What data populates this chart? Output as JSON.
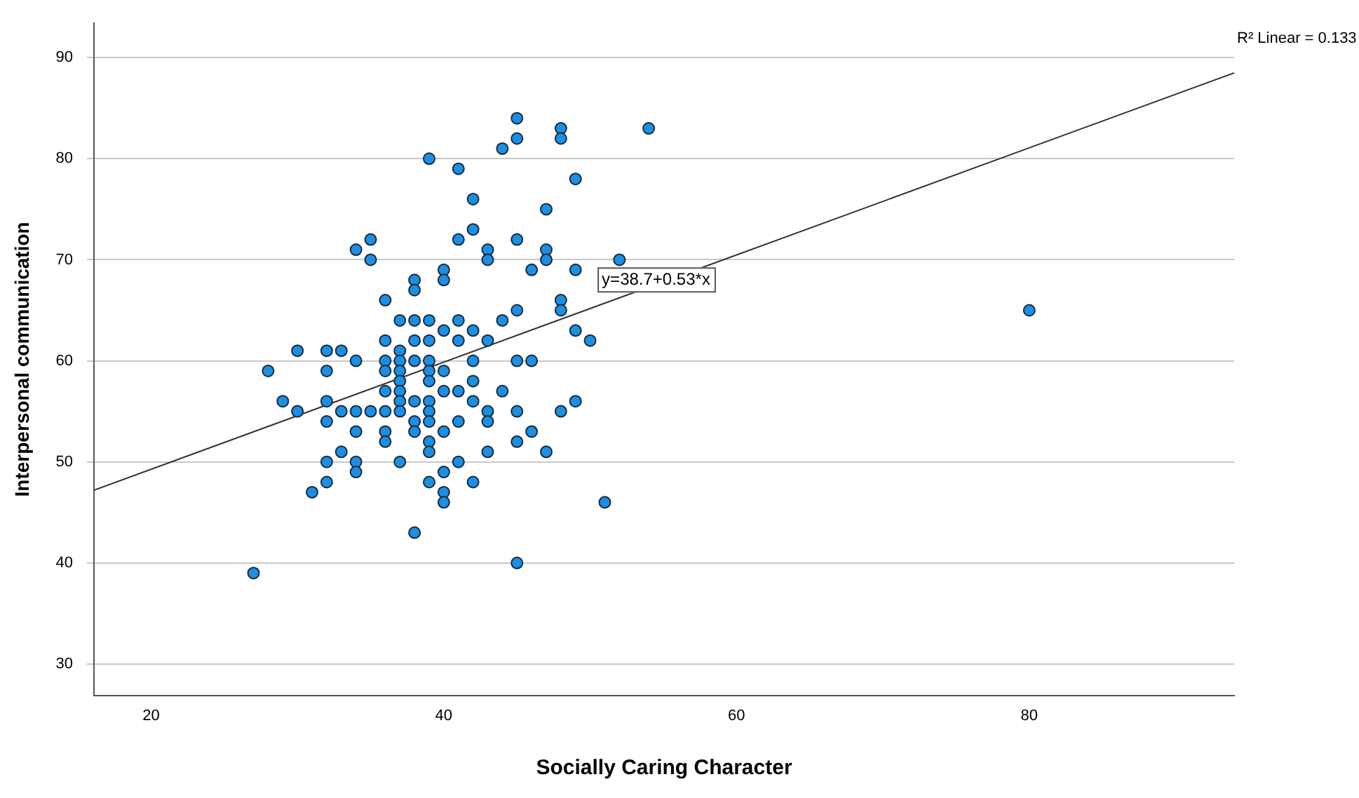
{
  "chart_data": {
    "type": "scatter",
    "xlabel": "Socially Caring Character",
    "ylabel": "Interpersonal communication",
    "xlim": [
      16.1,
      94
    ],
    "ylim": [
      26.9,
      93.4
    ],
    "xticks": [
      20,
      40,
      60,
      80
    ],
    "yticks": [
      30,
      40,
      50,
      60,
      70,
      80,
      90
    ],
    "grid": "y",
    "legend": false,
    "marker": "circle",
    "annotations": [
      "R² Linear = 0.133",
      {
        "text": "y=38.7+0.53*x",
        "x": 54.5,
        "y": 68
      }
    ],
    "series": [
      {
        "color": "#1a8fe3",
        "x": [
          27,
          28,
          29,
          30,
          30,
          31,
          32,
          32,
          32,
          32,
          32,
          32,
          33,
          33,
          33,
          34,
          34,
          34,
          34,
          34,
          34,
          35,
          35,
          35,
          36,
          36,
          36,
          36,
          36,
          36,
          36,
          36,
          37,
          37,
          37,
          37,
          37,
          37,
          37,
          37,
          37,
          38,
          38,
          38,
          38,
          38,
          38,
          38,
          38,
          38,
          39,
          39,
          39,
          39,
          39,
          39,
          39,
          39,
          39,
          39,
          39,
          39,
          40,
          40,
          40,
          40,
          40,
          40,
          40,
          40,
          40,
          41,
          41,
          41,
          41,
          41,
          41,
          41,
          42,
          42,
          42,
          42,
          42,
          42,
          42,
          43,
          43,
          43,
          43,
          43,
          43,
          44,
          44,
          44,
          45,
          45,
          45,
          45,
          45,
          45,
          45,
          45,
          46,
          46,
          46,
          47,
          47,
          47,
          47,
          48,
          48,
          48,
          48,
          48,
          49,
          49,
          49,
          49,
          50,
          51,
          52,
          54,
          80
        ],
        "values": [
          39,
          59,
          56,
          61,
          55,
          47,
          61,
          59,
          56,
          54,
          50,
          48,
          61,
          55,
          51,
          71,
          60,
          55,
          53,
          50,
          49,
          72,
          70,
          55,
          66,
          62,
          60,
          59,
          57,
          55,
          53,
          52,
          64,
          61,
          60,
          59,
          58,
          57,
          56,
          55,
          50,
          68,
          67,
          64,
          62,
          60,
          56,
          54,
          53,
          43,
          80,
          64,
          62,
          60,
          59,
          58,
          56,
          55,
          54,
          52,
          51,
          48,
          69,
          68,
          63,
          59,
          57,
          53,
          49,
          47,
          46,
          79,
          72,
          64,
          62,
          57,
          54,
          50,
          76,
          73,
          63,
          60,
          58,
          56,
          48,
          71,
          70,
          62,
          55,
          54,
          51,
          81,
          64,
          57,
          84,
          82,
          72,
          65,
          60,
          55,
          52,
          40,
          69,
          60,
          53,
          75,
          71,
          70,
          51,
          83,
          82,
          66,
          65,
          55,
          78,
          69,
          63,
          56,
          62,
          46,
          70,
          83,
          65
        ]
      },
      {
        "type": "line",
        "color": "#333333",
        "marker": "none",
        "x": [
          16.1,
          94
        ],
        "values": [
          47.2,
          88.5
        ]
      }
    ]
  }
}
